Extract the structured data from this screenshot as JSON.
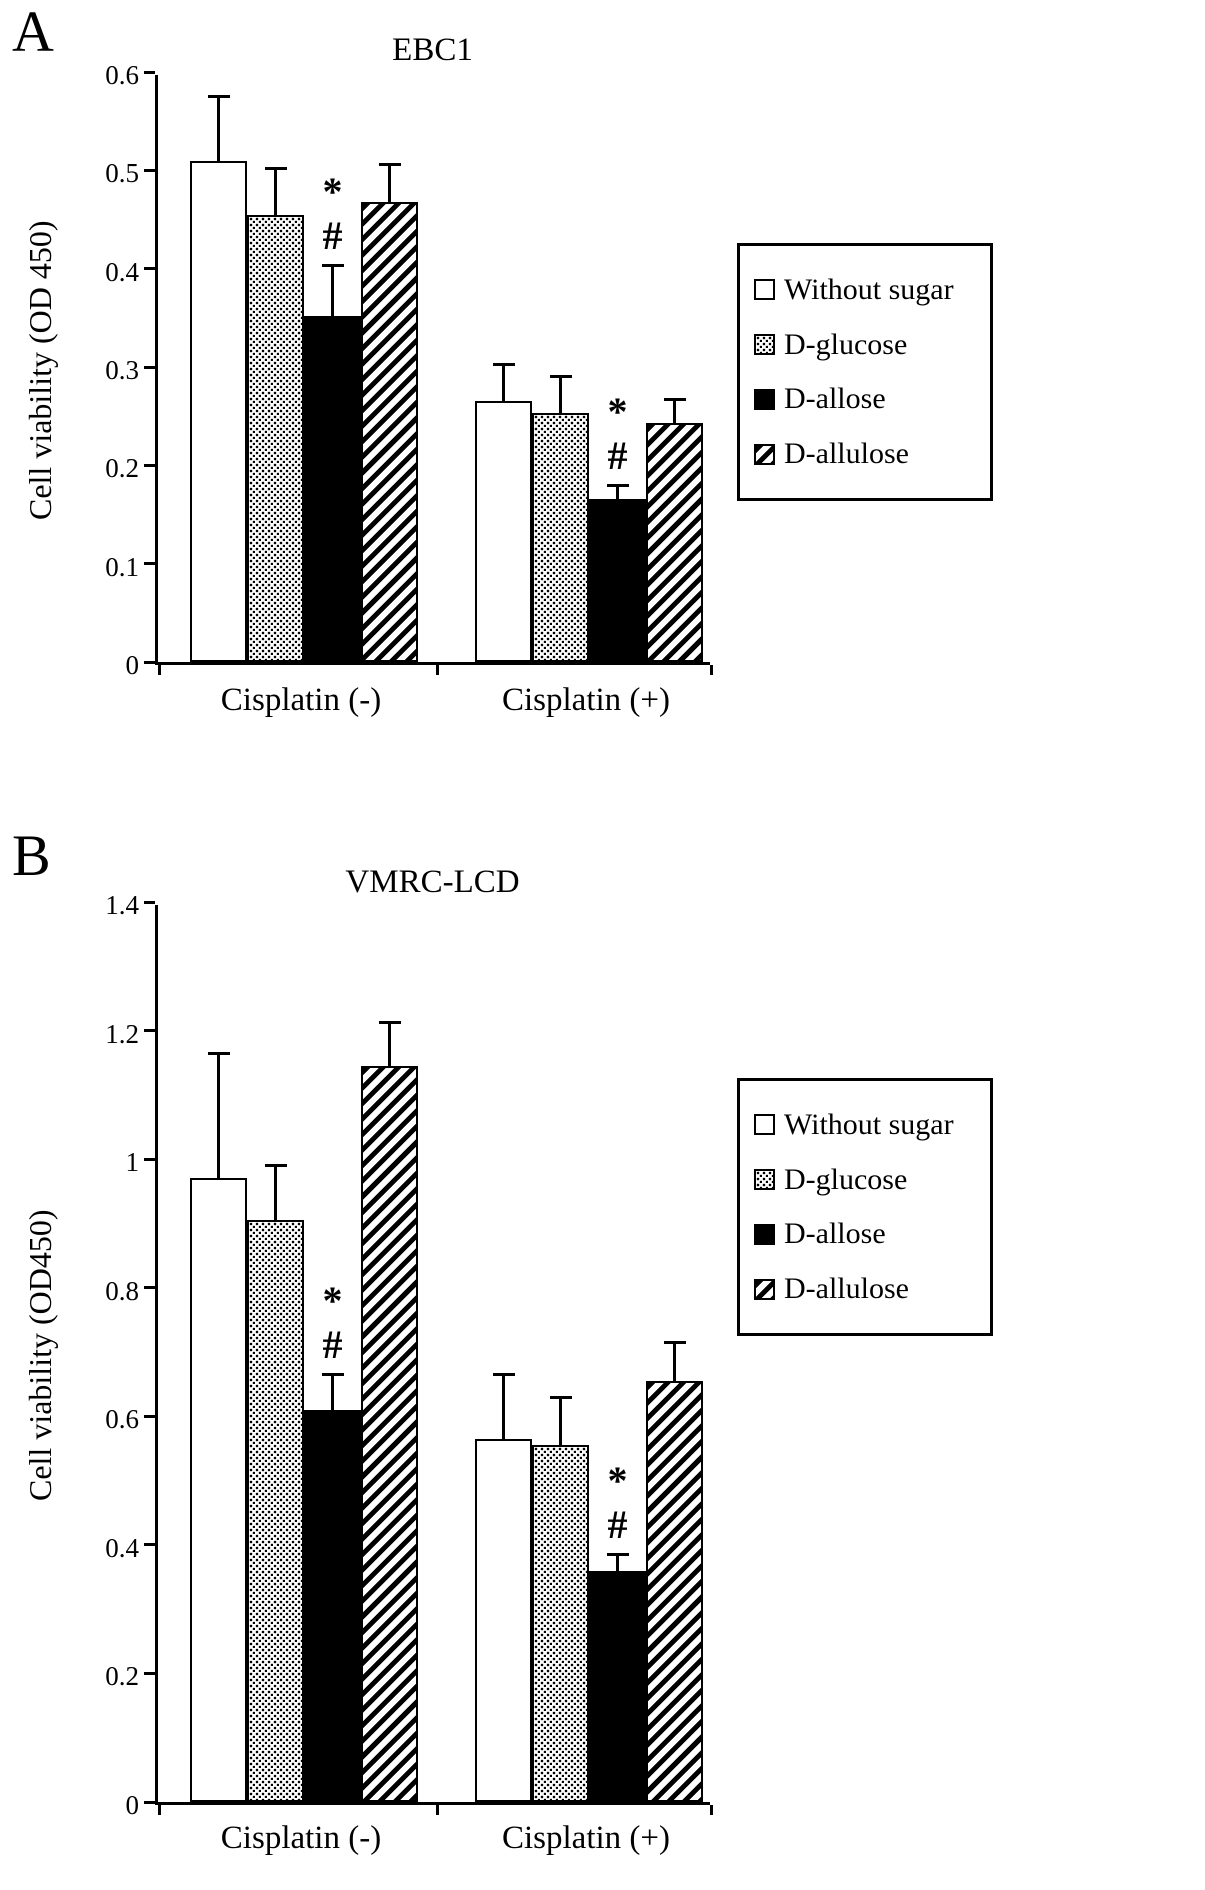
{
  "panels": [
    {
      "letter": "A"
    },
    {
      "letter": "B"
    }
  ],
  "chart_data": [
    {
      "type": "bar",
      "title": "EBC1",
      "ylabel": "Cell viability (OD 450)",
      "xlabel": "",
      "ylim": [
        0,
        0.6
      ],
      "ytick_values": [
        0,
        0.1,
        0.2,
        0.3,
        0.4,
        0.5,
        0.6
      ],
      "ytick_labels": [
        "0",
        "0.1",
        "0.2",
        "0.3",
        "0.4",
        "0.5",
        "0.6"
      ],
      "categories": [
        "Cisplatin (-)",
        "Cisplatin (+)"
      ],
      "series": [
        {
          "name": "Without sugar",
          "pattern": "open",
          "values": [
            0.51,
            0.265
          ],
          "errors": [
            0.065,
            0.038
          ]
        },
        {
          "name": "D-glucose",
          "pattern": "stipple",
          "values": [
            0.455,
            0.253
          ],
          "errors": [
            0.047,
            0.037
          ]
        },
        {
          "name": "D-allose",
          "pattern": "solid",
          "values": [
            0.352,
            0.166
          ],
          "errors": [
            0.051,
            0.013
          ]
        },
        {
          "name": "D-allulose",
          "pattern": "hatch",
          "values": [
            0.468,
            0.243
          ],
          "errors": [
            0.038,
            0.024
          ]
        }
      ],
      "annotations": [
        {
          "category_index": 0,
          "series_index": 2,
          "symbols": [
            "*",
            "#"
          ]
        },
        {
          "category_index": 1,
          "series_index": 2,
          "symbols": [
            "*",
            "#"
          ]
        }
      ],
      "legend": {
        "position": "right",
        "entries": [
          "Without sugar",
          "D-glucose",
          "D-allose",
          "D-allulose"
        ]
      },
      "grid": false
    },
    {
      "type": "bar",
      "title": "VMRC-LCD",
      "ylabel": "Cell viability (OD450)",
      "xlabel": "",
      "ylim": [
        0,
        1.4
      ],
      "ytick_values": [
        0,
        0.2,
        0.4,
        0.6,
        0.8,
        1.0,
        1.2,
        1.4
      ],
      "ytick_labels": [
        "0",
        "0.2",
        "0.4",
        "0.6",
        "0.8",
        "1",
        "1.2",
        "1.4"
      ],
      "categories": [
        "Cisplatin (-)",
        "Cisplatin (+)"
      ],
      "series": [
        {
          "name": "Without sugar",
          "pattern": "open",
          "values": [
            0.97,
            0.565
          ],
          "errors": [
            0.195,
            0.1
          ]
        },
        {
          "name": "D-glucose",
          "pattern": "stipple",
          "values": [
            0.905,
            0.555
          ],
          "errors": [
            0.085,
            0.075
          ]
        },
        {
          "name": "D-allose",
          "pattern": "solid",
          "values": [
            0.61,
            0.36
          ],
          "errors": [
            0.055,
            0.025
          ]
        },
        {
          "name": "D-allulose",
          "pattern": "hatch",
          "values": [
            1.145,
            0.655
          ],
          "errors": [
            0.068,
            0.06
          ]
        }
      ],
      "annotations": [
        {
          "category_index": 0,
          "series_index": 2,
          "symbols": [
            "*",
            "#"
          ]
        },
        {
          "category_index": 1,
          "series_index": 2,
          "symbols": [
            "*",
            "#"
          ]
        }
      ],
      "legend": {
        "position": "right",
        "entries": [
          "Without sugar",
          "D-glucose",
          "D-allose",
          "D-allulose"
        ]
      },
      "grid": false
    }
  ],
  "colors": {
    "foreground": "#000000",
    "background": "#ffffff"
  }
}
